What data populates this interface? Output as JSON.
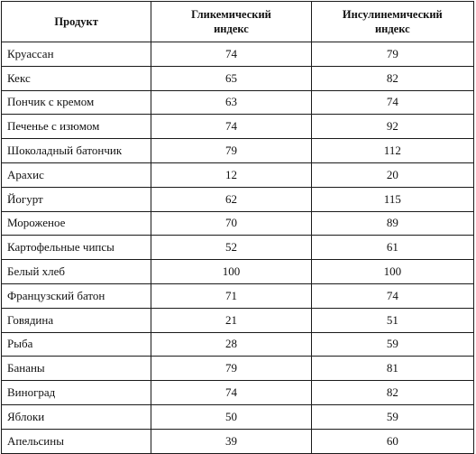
{
  "table": {
    "headers": {
      "product": "Продукт",
      "glycemic_line1": "Гликемический",
      "glycemic_line2": "индекс",
      "insulin_line1": "Инсулинемический",
      "insulin_line2": "индекс"
    },
    "rows": [
      {
        "product": "Круассан",
        "glycemic": "74",
        "insulin": "79"
      },
      {
        "product": "Кекс",
        "glycemic": "65",
        "insulin": "82"
      },
      {
        "product": "Пончик с кремом",
        "glycemic": "63",
        "insulin": "74"
      },
      {
        "product": "Печенье с изюмом",
        "glycemic": "74",
        "insulin": "92"
      },
      {
        "product": "Шоколадный батончик",
        "glycemic": "79",
        "insulin": "112"
      },
      {
        "product": "Арахис",
        "glycemic": "12",
        "insulin": "20"
      },
      {
        "product": "Йогурт",
        "glycemic": "62",
        "insulin": "115"
      },
      {
        "product": "Мороженое",
        "glycemic": "70",
        "insulin": "89"
      },
      {
        "product": "Картофельные чипсы",
        "glycemic": "52",
        "insulin": "61"
      },
      {
        "product": "Белый хлеб",
        "glycemic": "100",
        "insulin": "100"
      },
      {
        "product": "Французский батон",
        "glycemic": "71",
        "insulin": "74"
      },
      {
        "product": "Говядина",
        "glycemic": "21",
        "insulin": "51"
      },
      {
        "product": "Рыба",
        "glycemic": "28",
        "insulin": "59"
      },
      {
        "product": "Бананы",
        "glycemic": "79",
        "insulin": "81"
      },
      {
        "product": "Виноград",
        "glycemic": "74",
        "insulin": "82"
      },
      {
        "product": "Яблоки",
        "glycemic": "50",
        "insulin": "59"
      },
      {
        "product": "Апельсины",
        "glycemic": "39",
        "insulin": "60"
      }
    ]
  }
}
